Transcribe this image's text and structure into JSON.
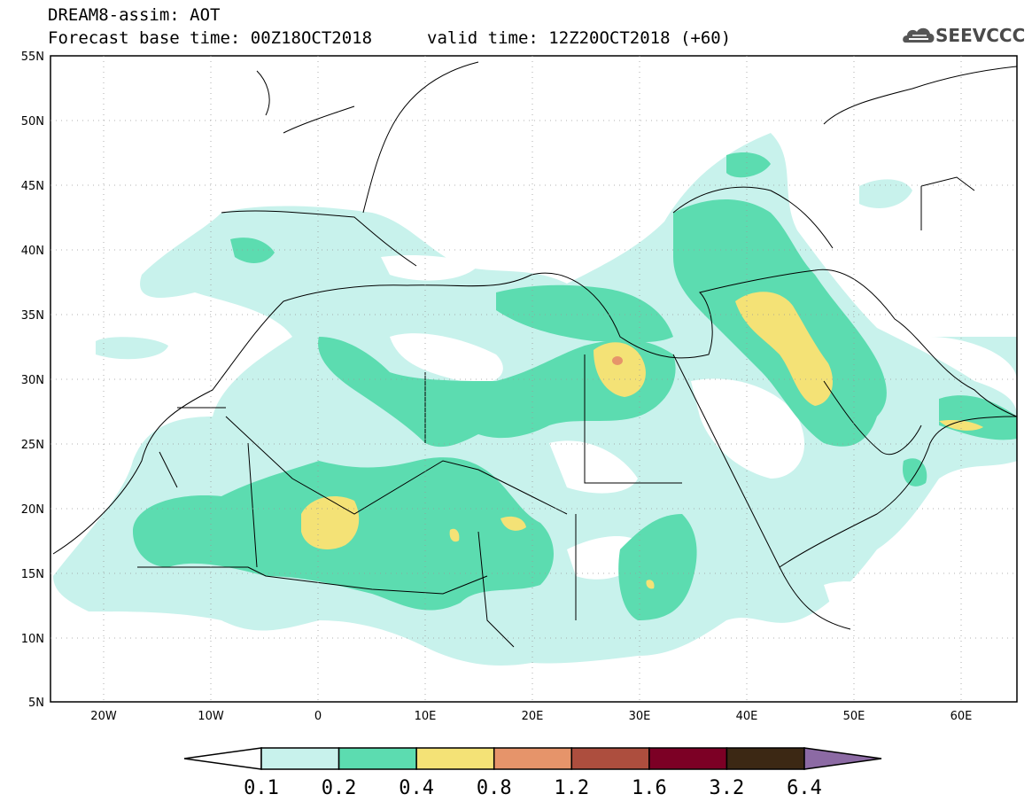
{
  "header": {
    "model_title": "DREAM8-assim: AOT",
    "forecast_base": "Forecast base time: 00Z18OCT2018",
    "valid_time": "valid time: 12Z20OCT2018 (+60)"
  },
  "logo": {
    "icon": "cloud-icon",
    "text": "SEEVCCC"
  },
  "axes": {
    "lat_labels": [
      "55N",
      "50N",
      "45N",
      "40N",
      "35N",
      "30N",
      "25N",
      "20N",
      "15N",
      "10N",
      "5N"
    ],
    "lon_labels": [
      "20W",
      "10W",
      "0",
      "10E",
      "20E",
      "30E",
      "40E",
      "50E",
      "60E"
    ],
    "lat_range": [
      5,
      55
    ],
    "lon_range": [
      -25,
      65
    ]
  },
  "colorbar": {
    "labels": [
      "0.1",
      "0.2",
      "0.4",
      "0.8",
      "1.2",
      "1.6",
      "3.2",
      "6.4"
    ],
    "colors": [
      "#ffffff",
      "#c8f2ec",
      "#5cdcb0",
      "#f4e276",
      "#e6946a",
      "#ad4e3e",
      "#7c0025",
      "#3c2814",
      "#8c6aa4"
    ]
  },
  "colors": {
    "background": "#ffffff",
    "level1": "#c8f2ec",
    "level2": "#5cdcb0",
    "level3": "#f4e276",
    "level4": "#e6946a",
    "coast": "#000000"
  }
}
